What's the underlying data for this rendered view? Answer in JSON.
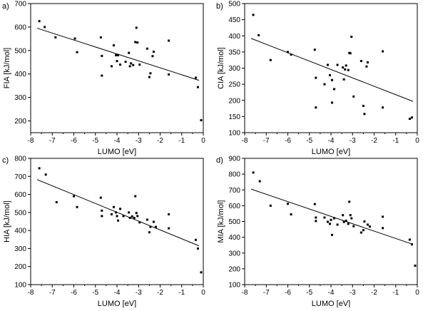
{
  "chart_data": [
    {
      "type": "scatter",
      "panel_label": "a)",
      "xlabel": "LUMO [eV]",
      "ylabel": "FIA [kJ/mol]",
      "xlim": [
        -8,
        0
      ],
      "ylim": [
        150,
        700
      ],
      "xticks": [
        -8,
        -7,
        -6,
        -5,
        -4,
        -3,
        -2,
        -1,
        0
      ],
      "yticks": [
        200,
        300,
        400,
        500,
        600,
        700
      ],
      "points": [
        [
          -7.6,
          625
        ],
        [
          -7.35,
          600
        ],
        [
          -6.85,
          556
        ],
        [
          -5.95,
          551
        ],
        [
          -5.85,
          493
        ],
        [
          -4.75,
          556
        ],
        [
          -4.7,
          477
        ],
        [
          -4.7,
          393
        ],
        [
          -4.25,
          433
        ],
        [
          -4.15,
          522
        ],
        [
          -4.05,
          480
        ],
        [
          -4.0,
          455
        ],
        [
          -3.95,
          480
        ],
        [
          -3.85,
          440
        ],
        [
          -3.6,
          452
        ],
        [
          -3.45,
          490
        ],
        [
          -3.4,
          433
        ],
        [
          -3.35,
          445
        ],
        [
          -3.25,
          438
        ],
        [
          -3.15,
          536
        ],
        [
          -3.1,
          597
        ],
        [
          -3.05,
          534
        ],
        [
          -2.95,
          440
        ],
        [
          -2.6,
          508
        ],
        [
          -2.5,
          387
        ],
        [
          -2.45,
          403
        ],
        [
          -2.35,
          476
        ],
        [
          -2.3,
          495
        ],
        [
          -1.6,
          542
        ],
        [
          -1.6,
          398
        ],
        [
          -0.35,
          384
        ],
        [
          -0.25,
          344
        ],
        [
          -0.1,
          203
        ]
      ],
      "fit_line": {
        "x": [
          -7.7,
          -0.2
        ],
        "y": [
          595,
          373
        ]
      }
    },
    {
      "type": "scatter",
      "panel_label": "b)",
      "xlabel": "LUMO [eV]",
      "ylabel": "CIA [kJ/mol]",
      "xlim": [
        -8,
        0
      ],
      "ylim": [
        100,
        500
      ],
      "xticks": [
        -8,
        -7,
        -6,
        -5,
        -4,
        -3,
        -2,
        -1,
        0
      ],
      "yticks": [
        100,
        150,
        200,
        250,
        300,
        350,
        400,
        450,
        500
      ],
      "points": [
        [
          -7.6,
          465
        ],
        [
          -7.35,
          402
        ],
        [
          -6.8,
          325
        ],
        [
          -6.0,
          350
        ],
        [
          -5.85,
          342
        ],
        [
          -4.75,
          357
        ],
        [
          -4.7,
          270
        ],
        [
          -4.7,
          178
        ],
        [
          -4.3,
          250
        ],
        [
          -4.15,
          310
        ],
        [
          -4.05,
          278
        ],
        [
          -3.95,
          263
        ],
        [
          -3.95,
          193
        ],
        [
          -3.85,
          235
        ],
        [
          -3.7,
          310
        ],
        [
          -3.45,
          302
        ],
        [
          -3.4,
          265
        ],
        [
          -3.35,
          296
        ],
        [
          -3.3,
          308
        ],
        [
          -3.2,
          294
        ],
        [
          -3.15,
          347
        ],
        [
          -3.1,
          346
        ],
        [
          -3.05,
          397
        ],
        [
          -2.95,
          212
        ],
        [
          -2.6,
          322
        ],
        [
          -2.5,
          183
        ],
        [
          -2.45,
          158
        ],
        [
          -2.35,
          305
        ],
        [
          -2.3,
          318
        ],
        [
          -1.6,
          352
        ],
        [
          -1.6,
          178
        ],
        [
          -0.35,
          143
        ],
        [
          -0.25,
          147
        ]
      ],
      "fit_line": {
        "x": [
          -7.7,
          -0.2
        ],
        "y": [
          392,
          197
        ]
      }
    },
    {
      "type": "scatter",
      "panel_label": "c)",
      "xlabel": "LUMO [eV]",
      "ylabel": "HIA [kJ/mol]",
      "xlim": [
        -8,
        0
      ],
      "ylim": [
        100,
        800
      ],
      "xticks": [
        -8,
        -7,
        -6,
        -5,
        -4,
        -3,
        -2,
        -1,
        0
      ],
      "yticks": [
        100,
        200,
        300,
        400,
        500,
        600,
        700,
        800
      ],
      "points": [
        [
          -7.6,
          745
        ],
        [
          -7.3,
          710
        ],
        [
          -6.8,
          557
        ],
        [
          -6.0,
          590
        ],
        [
          -5.85,
          530
        ],
        [
          -4.75,
          582
        ],
        [
          -4.7,
          510
        ],
        [
          -4.7,
          480
        ],
        [
          -4.25,
          490
        ],
        [
          -4.15,
          530
        ],
        [
          -4.05,
          500
        ],
        [
          -4.0,
          480
        ],
        [
          -3.95,
          455
        ],
        [
          -3.85,
          520
        ],
        [
          -3.7,
          480
        ],
        [
          -3.45,
          500
        ],
        [
          -3.4,
          470
        ],
        [
          -3.3,
          478
        ],
        [
          -3.2,
          470
        ],
        [
          -3.15,
          590
        ],
        [
          -3.1,
          497
        ],
        [
          -3.05,
          480
        ],
        [
          -2.95,
          445
        ],
        [
          -2.6,
          460
        ],
        [
          -2.5,
          390
        ],
        [
          -2.45,
          420
        ],
        [
          -2.3,
          448
        ],
        [
          -2.2,
          420
        ],
        [
          -1.6,
          490
        ],
        [
          -1.6,
          412
        ],
        [
          -0.35,
          348
        ],
        [
          -0.25,
          300
        ],
        [
          -0.1,
          168
        ]
      ],
      "fit_line": {
        "x": [
          -7.7,
          -0.2
        ],
        "y": [
          682,
          315
        ]
      }
    },
    {
      "type": "scatter",
      "panel_label": "d)",
      "xlabel": "LUMO [eV]",
      "ylabel": "MIA [kJ/mol]",
      "xlim": [
        -8,
        0
      ],
      "ylim": [
        100,
        900
      ],
      "xticks": [
        -8,
        -7,
        -6,
        -5,
        -4,
        -3,
        -2,
        -1,
        0
      ],
      "yticks": [
        100,
        200,
        300,
        400,
        500,
        600,
        700,
        800,
        900
      ],
      "points": [
        [
          -7.6,
          810
        ],
        [
          -7.3,
          755
        ],
        [
          -6.8,
          600
        ],
        [
          -6.0,
          612
        ],
        [
          -5.85,
          545
        ],
        [
          -4.75,
          610
        ],
        [
          -4.7,
          525
        ],
        [
          -4.7,
          503
        ],
        [
          -4.3,
          525
        ],
        [
          -4.15,
          498
        ],
        [
          -4.05,
          485
        ],
        [
          -4.0,
          510
        ],
        [
          -3.95,
          415
        ],
        [
          -3.85,
          520
        ],
        [
          -3.7,
          480
        ],
        [
          -3.45,
          540
        ],
        [
          -3.4,
          497
        ],
        [
          -3.3,
          505
        ],
        [
          -3.2,
          485
        ],
        [
          -3.15,
          625
        ],
        [
          -3.1,
          540
        ],
        [
          -3.05,
          520
        ],
        [
          -2.95,
          470
        ],
        [
          -2.6,
          430
        ],
        [
          -2.5,
          445
        ],
        [
          -2.45,
          500
        ],
        [
          -2.3,
          480
        ],
        [
          -2.2,
          468
        ],
        [
          -1.6,
          530
        ],
        [
          -1.6,
          458
        ],
        [
          -0.35,
          385
        ],
        [
          -0.25,
          355
        ],
        [
          -0.1,
          220
        ]
      ],
      "fit_line": {
        "x": [
          -7.7,
          -0.2
        ],
        "y": [
          705,
          355
        ]
      }
    }
  ]
}
